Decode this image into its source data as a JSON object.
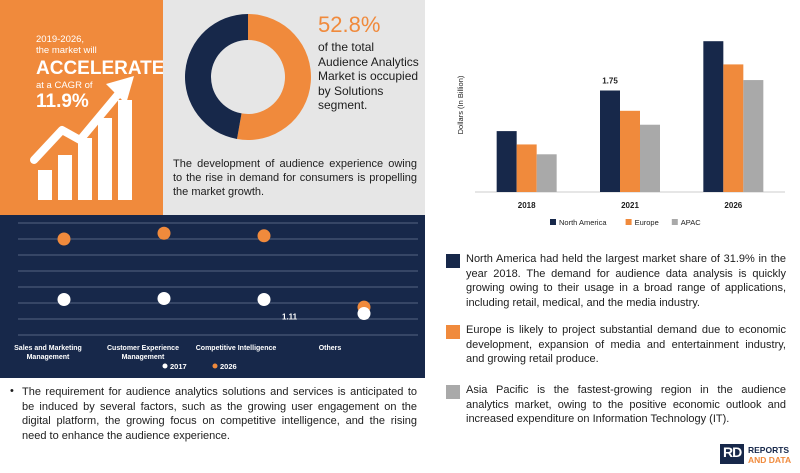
{
  "cagr": {
    "period": "2019-2026,",
    "line2": "the market will",
    "headline": "ACCELERATE",
    "line4": "at a CAGR of",
    "rate": "11.9%"
  },
  "donut": {
    "share_label": "52.8%",
    "share_value": 52.8,
    "description": "of the total Audience Analytics Market is occupied by Solutions segment.",
    "colors": {
      "share": "#f08a3c",
      "rest": "#17284a"
    }
  },
  "growth_text": "The development of audience experience owing to the rise in demand for consumers is propelling the market growth.",
  "requirement_text": "The requirement for audience analytics solutions and services is anticipated to be induced by several factors, such as the growing user engagement on the digital platform, the growing focus on competitive intelligence, and the rising need to enhance the audience experience.",
  "bullet_char": "•",
  "chart_data": [
    {
      "type": "bar",
      "ylabel": "Dollars (In Billion)",
      "categories": [
        "2018",
        "2021",
        "2026"
      ],
      "series": [
        {
          "name": "North America",
          "color": "#17284a",
          "values": [
            1.05,
            1.75,
            2.6
          ]
        },
        {
          "name": "Europe",
          "color": "#f08a3c",
          "values": [
            0.82,
            1.4,
            2.2
          ]
        },
        {
          "name": "APAC",
          "color": "#a9a9a9",
          "values": [
            0.65,
            1.16,
            1.93
          ]
        }
      ],
      "annotations": [
        {
          "category": "2021",
          "series": "North America",
          "label": "1.75"
        }
      ],
      "ylim": [
        0,
        3.0
      ]
    },
    {
      "type": "scatter",
      "categories": [
        "Sales and Marketing Management",
        "Customer Experience Management",
        "Competitive Intelligence",
        "Others"
      ],
      "series": [
        {
          "name": "2017",
          "color": "#ffffff",
          "values": [
            1.11,
            1.14,
            1.11,
            0.67
          ]
        },
        {
          "name": "2026",
          "color": "#f08a3c",
          "values": [
            3.0,
            3.18,
            3.1,
            0.87
          ]
        }
      ],
      "annotations": [
        {
          "category": "Competitive Intelligence",
          "series": "2017",
          "label": "1.11"
        }
      ],
      "ylim": [
        0,
        3.5
      ],
      "grid": true
    }
  ],
  "legend_texts": [
    "North America had held the largest market share of 31.9% in the year 2018. The demand for audience data analysis is quickly growing owing to their usage in a broad range of applications, including retail, medical, and the media industry.",
    "Europe is likely to project substantial demand due to economic development, expansion of media and entertainment industry, and growing retail produce.",
    "Asia Pacific is the fastest-growing region in the audience analytics market, owing to the positive economic outlook and increased expenditure on Information Technology (IT)."
  ],
  "legend_colors": [
    "#17284a",
    "#f08a3c",
    "#a9a9a9"
  ],
  "logo": {
    "mark": "RD",
    "line1": "REPORTS",
    "line2": "AND DATA"
  }
}
